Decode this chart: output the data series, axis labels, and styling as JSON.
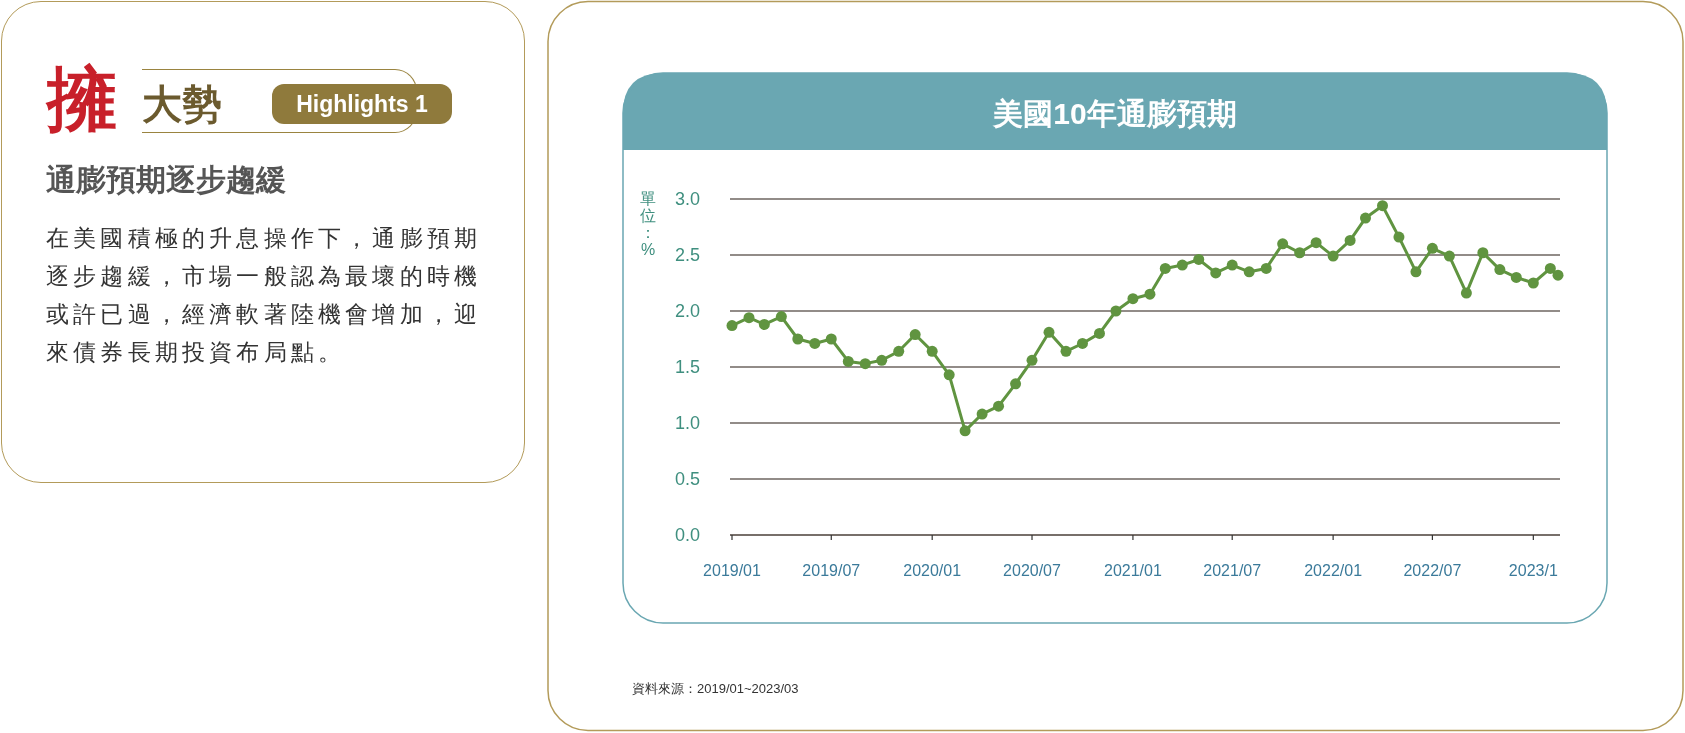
{
  "chart_data": [
    {
      "type": "other",
      "title": "擁大勢",
      "subtitle": "通膨預期逐步趨緩",
      "annotations": [
        "Highlights 1",
        "在美國積極的升息操作下，通膨預期逐步趨緩，市場一般認為最壞的時機或許已過，經濟軟著陸機會增加，迎來債券長期投資布局點。"
      ]
    },
    {
      "type": "line",
      "title": "美國10年通膨預期",
      "ylabel": "單位：%",
      "x": [
        "2019-01",
        "2019-02",
        "2019-03",
        "2019-04",
        "2019-05",
        "2019-06",
        "2019-07",
        "2019-08",
        "2019-09",
        "2019-10",
        "2019-11",
        "2019-12",
        "2020-01",
        "2020-02",
        "2020-03",
        "2020-04",
        "2020-05",
        "2020-06",
        "2020-07",
        "2020-08",
        "2020-09",
        "2020-10",
        "2020-11",
        "2020-12",
        "2021-01",
        "2021-02",
        "2021-03",
        "2021-04",
        "2021-05",
        "2021-06",
        "2021-07",
        "2021-08",
        "2021-09",
        "2021-10",
        "2021-11",
        "2021-12",
        "2022-01",
        "2022-02",
        "2022-03",
        "2022-04",
        "2022-05",
        "2022-06",
        "2022-07",
        "2022-08",
        "2022-09",
        "2022-10",
        "2022-11",
        "2022-12",
        "2023-01",
        "2023-02",
        "2023-02-15"
      ],
      "series": [
        {
          "color": "#609440",
          "values": [
            1.87,
            1.94,
            1.88,
            1.95,
            1.75,
            1.71,
            1.75,
            1.55,
            1.53,
            1.56,
            1.64,
            1.79,
            1.64,
            1.43,
            0.93,
            1.08,
            1.15,
            1.35,
            1.56,
            1.81,
            1.64,
            1.71,
            1.8,
            2.0,
            2.11,
            2.15,
            2.38,
            2.41,
            2.46,
            2.34,
            2.41,
            2.35,
            2.38,
            2.6,
            2.52,
            2.61,
            2.49,
            2.63,
            2.83,
            2.94,
            2.66,
            2.35,
            2.56,
            2.49,
            2.16,
            2.52,
            2.37,
            2.3,
            2.25,
            2.38,
            2.32
          ]
        }
      ],
      "xlim": [
        "2019-01",
        "2023-02-15"
      ],
      "xticks": [
        {
          "value": "2019-01",
          "label": "2019/01"
        },
        {
          "value": "2019-07",
          "label": "2019/07"
        },
        {
          "value": "2020-01",
          "label": "2020/01"
        },
        {
          "value": "2020-07",
          "label": "2020/07"
        },
        {
          "value": "2021-01",
          "label": "2021/01"
        },
        {
          "value": "2021-07",
          "label": "2021/07"
        },
        {
          "value": "2022-01",
          "label": "2022/01"
        },
        {
          "value": "2022-07",
          "label": "2022/07"
        },
        {
          "value": "2023-01",
          "label": "2023/1"
        }
      ],
      "ylim": [
        0,
        3
      ],
      "yticks": [
        {
          "value": 0,
          "label": "0.0"
        },
        {
          "value": 0.5,
          "label": "0.5"
        },
        {
          "value": 1,
          "label": "1.0"
        },
        {
          "value": 1.5,
          "label": "1.5"
        },
        {
          "value": 2,
          "label": "2.0"
        },
        {
          "value": 2.5,
          "label": "2.5"
        },
        {
          "value": 3,
          "label": "3.0"
        }
      ],
      "grid": "y",
      "marker": "circle",
      "line_style": "solid",
      "annotations": [
        "資料來源：2019/01~2023/03"
      ]
    }
  ]
}
